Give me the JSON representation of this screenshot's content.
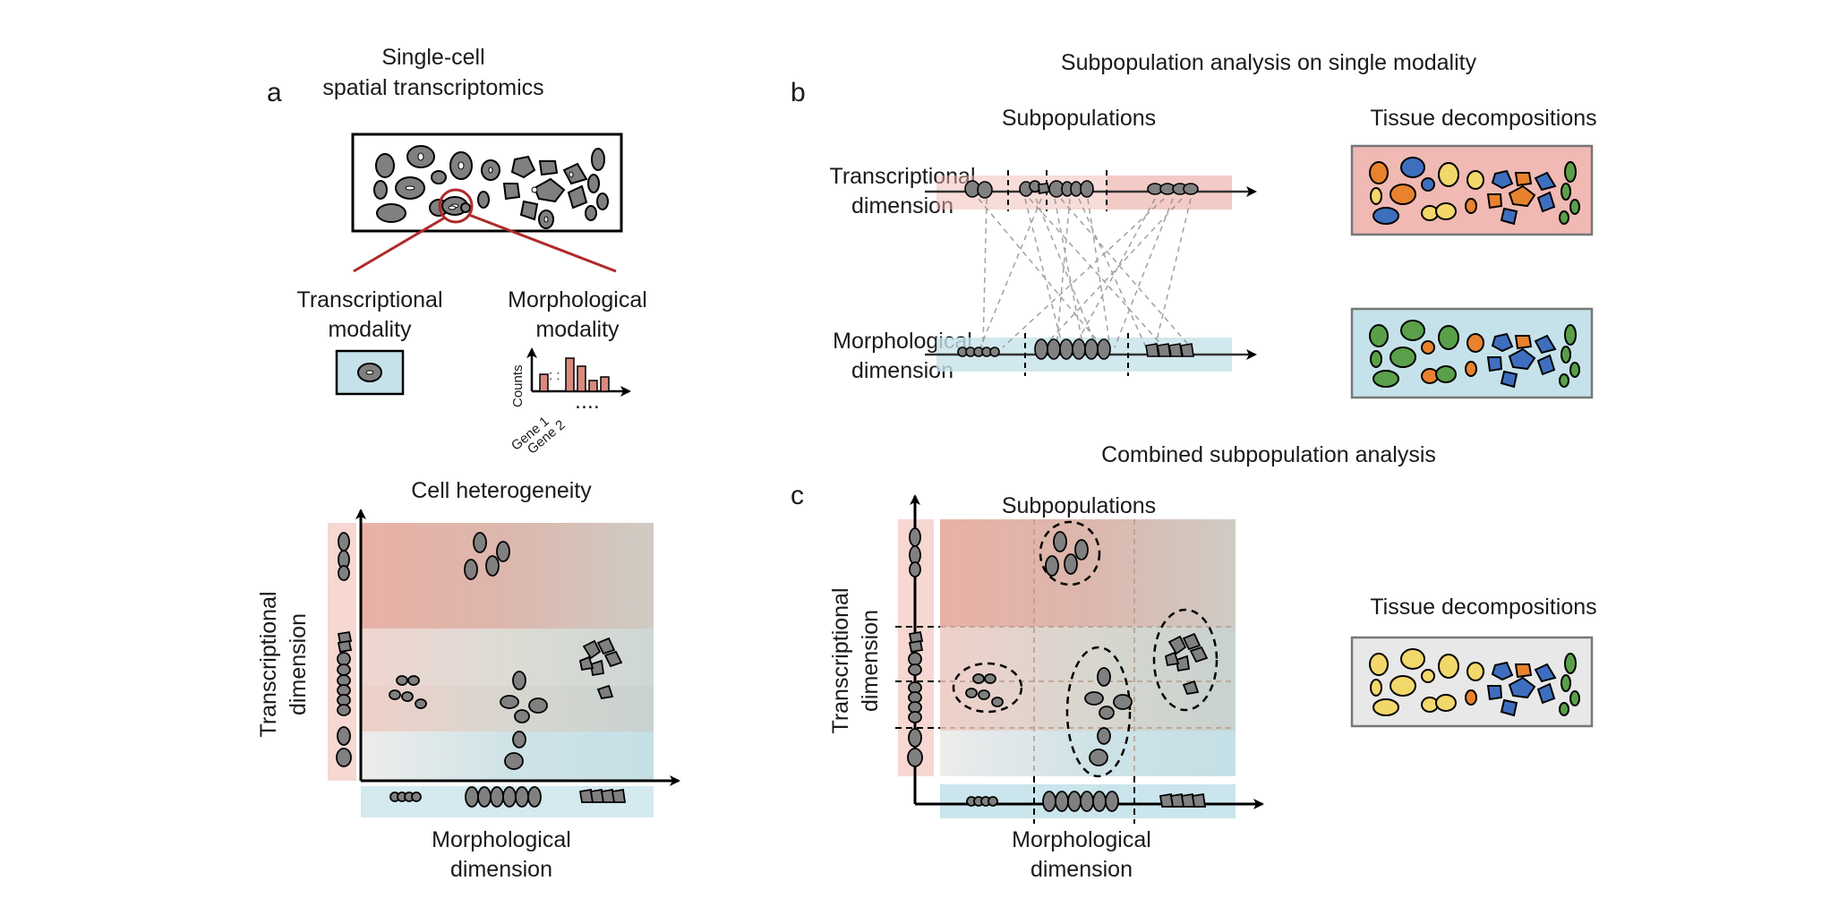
{
  "panels": {
    "a": {
      "letter": "a",
      "title_line1": "Single-cell",
      "title_line2": "spatial transcriptomics",
      "transcriptional_line1": "Transcriptional",
      "transcriptional_line2": "modality",
      "morphological_line1": "Morphological",
      "morphological_line2": "modality",
      "hist_ylabel": "Counts",
      "hist_gene1": "Gene 1",
      "hist_gene2": "Gene 2",
      "hist_dots": "....",
      "heterogeneity_title": "Cell heterogeneity",
      "y_label_line1": "Transcriptional",
      "y_label_line2": "dimension",
      "x_label_line1": "Morphological",
      "x_label_line2": "dimension"
    },
    "b": {
      "letter": "b",
      "title": "Subpopulation analysis on single modality",
      "subpop_heading": "Subpopulations",
      "tissue_heading": "Tissue decompositions",
      "row1_line1": "Transcriptional",
      "row1_line2": "dimension",
      "row2_line1": "Morphological",
      "row2_line2": "dimension"
    },
    "c": {
      "letter": "c",
      "title": "Combined subpopulation analysis",
      "subpop_heading": "Subpopulations",
      "tissue_heading": "Tissue decompositions",
      "y_label_line1": "Transcriptional",
      "y_label_line2": "dimension",
      "x_label_line1": "Morphological",
      "x_label_line2": "dimension"
    }
  },
  "colors": {
    "red_bg": "#f0b9b3",
    "blue_bg": "#c5e2ea",
    "gray_bg": "#e8e8e8",
    "cell_gray": "#808080",
    "callout_red": "#b02a2a",
    "bar_red": "#d98a7c",
    "blue": "#3e6fbf",
    "orange": "#e8822e",
    "yellow": "#f2d76b",
    "green": "#5aa04a"
  }
}
